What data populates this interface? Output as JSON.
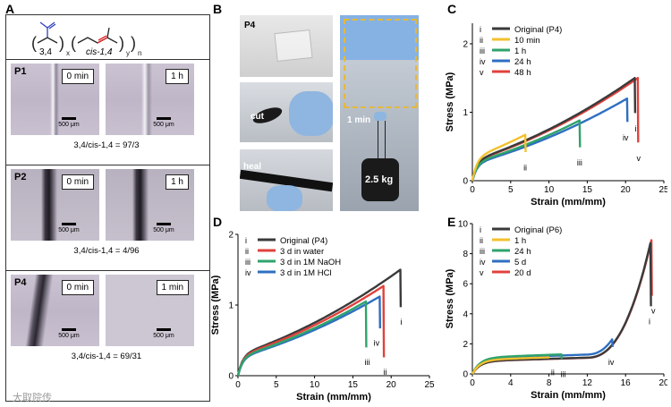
{
  "panels": {
    "a": {
      "letter": "A",
      "unit_34": "3,4",
      "unit_cis": "cis-1,4",
      "sub_x": "x",
      "sub_y": "y",
      "sub_n": "n",
      "rows": [
        {
          "name": "P1",
          "t1": "0 min",
          "t2": "1 h",
          "scale": "500 μm",
          "ratio": "3,4/cis-1,4 = 97/3"
        },
        {
          "name": "P2",
          "t1": "0 min",
          "t2": "1 h",
          "scale": "500 μm",
          "ratio": "3,4/cis-1,4 = 4/96"
        },
        {
          "name": "P4",
          "t1": "0 min",
          "t2": "1 min",
          "scale": "500 μm",
          "ratio": "3,4/cis-1,4 = 69/31"
        }
      ]
    },
    "b": {
      "letter": "B",
      "p4": "P4",
      "cut": "cut",
      "heal": "heal",
      "time": "1 min",
      "weight": "2.5 kg"
    },
    "c": {
      "letter": "C"
    },
    "d": {
      "letter": "D"
    },
    "e": {
      "letter": "E"
    }
  },
  "watermark": "大取院传",
  "colors": {
    "black": "#3a3a3a",
    "yellow": "#f2c12e",
    "green": "#2fa36b",
    "blue": "#2e6fc0",
    "red": "#e0413c"
  },
  "chart_data": [
    {
      "id": "c",
      "type": "line",
      "xlabel": "Strain (mm/mm)",
      "ylabel": "Stress (MPa)",
      "xlim": [
        0,
        25
      ],
      "ylim": [
        0,
        2.3
      ],
      "xticks": [
        0,
        5,
        10,
        15,
        20,
        25
      ],
      "yticks": [
        0,
        1,
        2
      ],
      "legend": "top-left",
      "series": [
        {
          "marker": "i",
          "name": "Original (P4)",
          "color": "#3a3a3a",
          "break": 21.2,
          "ymax": 1.5,
          "label_at": [
            21.3,
            0.85
          ]
        },
        {
          "marker": "ii",
          "name": "10 min",
          "color": "#f2c12e",
          "break": 6.9,
          "ymax": 0.67,
          "label_at": [
            6.9,
            0.28
          ]
        },
        {
          "marker": "iii",
          "name": "1 h",
          "color": "#2fa36b",
          "break": 14.0,
          "ymax": 0.88,
          "label_at": [
            14.0,
            0.35
          ]
        },
        {
          "marker": "iv",
          "name": "24 h",
          "color": "#2e6fc0",
          "break": 20.2,
          "ymax": 1.2,
          "label_at": [
            20.0,
            0.72
          ]
        },
        {
          "marker": "v",
          "name": "48 h",
          "color": "#e0413c",
          "break": 21.6,
          "ymax": 1.5,
          "label_at": [
            21.7,
            0.42
          ]
        }
      ]
    },
    {
      "id": "d",
      "type": "line",
      "xlabel": "Strain (mm/mm)",
      "ylabel": "Stress (MPa)",
      "xlim": [
        0,
        25
      ],
      "ylim": [
        0,
        2
      ],
      "xticks": [
        0,
        5,
        10,
        15,
        20,
        25
      ],
      "yticks": [
        0,
        1,
        2
      ],
      "legend": "top-left",
      "series": [
        {
          "marker": "i",
          "name": "Original (P4)",
          "color": "#3a3a3a",
          "break": 21.2,
          "ymax": 1.5,
          "label_at": [
            21.3,
            0.85
          ]
        },
        {
          "marker": "ii",
          "name": "3 d in water",
          "color": "#e0413c",
          "break": 19.0,
          "ymax": 1.27,
          "label_at": [
            19.2,
            0.14
          ]
        },
        {
          "marker": "iii",
          "name": "3 d in 1M NaOH",
          "color": "#2fa36b",
          "break": 16.7,
          "ymax": 1.05,
          "label_at": [
            16.9,
            0.28
          ]
        },
        {
          "marker": "iv",
          "name": "3 d in 1M HCl",
          "color": "#2e6fc0",
          "break": 18.5,
          "ymax": 1.12,
          "label_at": [
            18.1,
            0.55
          ]
        }
      ]
    },
    {
      "id": "e",
      "type": "line",
      "xlabel": "Strain (mm/mm)",
      "ylabel": "Stress (MPa)",
      "xlim": [
        0,
        20
      ],
      "ylim": [
        0,
        10
      ],
      "xticks": [
        0,
        4,
        8,
        12,
        16,
        20
      ],
      "yticks": [
        0,
        2,
        4,
        6,
        8,
        10
      ],
      "legend": "top-left",
      "series": [
        {
          "marker": "i",
          "name": "Original (P6)",
          "color": "#3a3a3a",
          "break": 18.6,
          "ymax": 8.7,
          "label_at": [
            18.5,
            3.9
          ]
        },
        {
          "marker": "ii",
          "name": "1 h",
          "color": "#f2c12e",
          "break": 8.0,
          "ymax": 1.1,
          "label_at": [
            8.4,
            0.5
          ]
        },
        {
          "marker": "iii",
          "name": "24 h",
          "color": "#2fa36b",
          "break": 9.3,
          "ymax": 1.3,
          "label_at": [
            9.5,
            0.4
          ]
        },
        {
          "marker": "iv",
          "name": "5 d",
          "color": "#2e6fc0",
          "break": 14.6,
          "ymax": 2.3,
          "label_at": [
            14.5,
            1.2
          ]
        },
        {
          "marker": "v",
          "name": "20 d",
          "color": "#e0413c",
          "break": 18.7,
          "ymax": 8.9,
          "label_at": [
            18.9,
            4.6
          ]
        }
      ]
    }
  ]
}
